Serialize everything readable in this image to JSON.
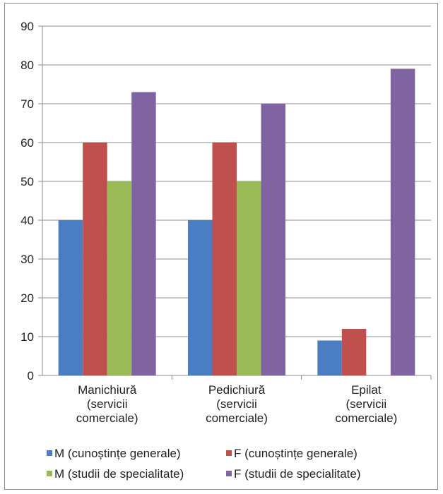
{
  "chart_data": {
    "type": "bar",
    "title": "",
    "xlabel": "",
    "ylabel": "",
    "ylim": [
      0,
      90
    ],
    "yticks": [
      "0",
      "10",
      "20",
      "30",
      "40",
      "50",
      "60",
      "70",
      "80",
      "90"
    ],
    "grid": true,
    "legend": "bottom",
    "categories": [
      [
        "Manichiură",
        "(servicii",
        "comerciale)"
      ],
      [
        "Pedichiură",
        "(servicii",
        "comerciale)"
      ],
      [
        "Epilat",
        "(servicii",
        "comerciale)"
      ]
    ],
    "series": [
      {
        "name": "M (cunoștințe generale)",
        "color": "#4a7dc1",
        "values": [
          40,
          40,
          9
        ]
      },
      {
        "name": "F (cunoștințe generale)",
        "color": "#c0504d",
        "values": [
          60,
          60,
          12
        ]
      },
      {
        "name": "M (studii de specialitate)",
        "color": "#9bbb59",
        "values": [
          50,
          50,
          0
        ]
      },
      {
        "name": "F (studii de specialitate)",
        "color": "#8064a2",
        "values": [
          73,
          70,
          79
        ]
      }
    ]
  }
}
